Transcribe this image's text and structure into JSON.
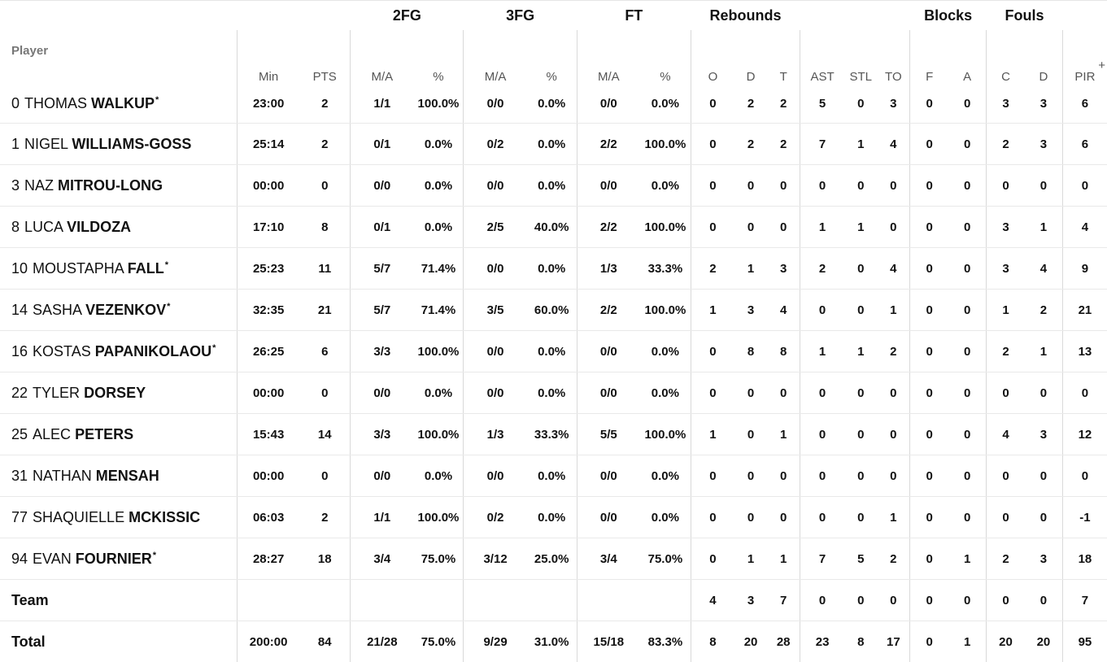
{
  "groups": {
    "fg2": "2FG",
    "fg3": "3FG",
    "ft": "FT",
    "rebounds": "Rebounds",
    "blocks": "Blocks",
    "fouls": "Fouls"
  },
  "columns": {
    "player": "Player",
    "min": "Min",
    "pts": "PTS",
    "fg2_ma": "M/A",
    "fg2_pct": "%",
    "fg3_ma": "M/A",
    "fg3_pct": "%",
    "ft_ma": "M/A",
    "ft_pct": "%",
    "reb_o": "O",
    "reb_d": "D",
    "reb_t": "T",
    "ast": "AST",
    "stl": "STL",
    "to": "TO",
    "blk_f": "F",
    "blk_a": "A",
    "foul_c": "C",
    "foul_d": "D",
    "pir": "PIR",
    "more": "+"
  },
  "rows": [
    {
      "num": "0",
      "first": "THOMAS",
      "last": "WALKUP",
      "star": "*",
      "min": "23:00",
      "pts": "2",
      "fg2_ma": "1/1",
      "fg2_pct": "100.0%",
      "fg3_ma": "0/0",
      "fg3_pct": "0.0%",
      "ft_ma": "0/0",
      "ft_pct": "0.0%",
      "reb_o": "0",
      "reb_d": "2",
      "reb_t": "2",
      "ast": "5",
      "stl": "0",
      "to": "3",
      "blk_f": "0",
      "blk_a": "0",
      "foul_c": "3",
      "foul_d": "3",
      "pir": "6"
    },
    {
      "num": "1",
      "first": "NIGEL",
      "last": "WILLIAMS-GOSS",
      "star": "",
      "min": "25:14",
      "pts": "2",
      "fg2_ma": "0/1",
      "fg2_pct": "0.0%",
      "fg3_ma": "0/2",
      "fg3_pct": "0.0%",
      "ft_ma": "2/2",
      "ft_pct": "100.0%",
      "reb_o": "0",
      "reb_d": "2",
      "reb_t": "2",
      "ast": "7",
      "stl": "1",
      "to": "4",
      "blk_f": "0",
      "blk_a": "0",
      "foul_c": "2",
      "foul_d": "3",
      "pir": "6"
    },
    {
      "num": "3",
      "first": "NAZ",
      "last": "MITROU-LONG",
      "star": "",
      "min": "00:00",
      "pts": "0",
      "fg2_ma": "0/0",
      "fg2_pct": "0.0%",
      "fg3_ma": "0/0",
      "fg3_pct": "0.0%",
      "ft_ma": "0/0",
      "ft_pct": "0.0%",
      "reb_o": "0",
      "reb_d": "0",
      "reb_t": "0",
      "ast": "0",
      "stl": "0",
      "to": "0",
      "blk_f": "0",
      "blk_a": "0",
      "foul_c": "0",
      "foul_d": "0",
      "pir": "0"
    },
    {
      "num": "8",
      "first": "LUCA",
      "last": "VILDOZA",
      "star": "",
      "min": "17:10",
      "pts": "8",
      "fg2_ma": "0/1",
      "fg2_pct": "0.0%",
      "fg3_ma": "2/5",
      "fg3_pct": "40.0%",
      "ft_ma": "2/2",
      "ft_pct": "100.0%",
      "reb_o": "0",
      "reb_d": "0",
      "reb_t": "0",
      "ast": "1",
      "stl": "1",
      "to": "0",
      "blk_f": "0",
      "blk_a": "0",
      "foul_c": "3",
      "foul_d": "1",
      "pir": "4"
    },
    {
      "num": "10",
      "first": "MOUSTAPHA",
      "last": "FALL",
      "star": "*",
      "min": "25:23",
      "pts": "11",
      "fg2_ma": "5/7",
      "fg2_pct": "71.4%",
      "fg3_ma": "0/0",
      "fg3_pct": "0.0%",
      "ft_ma": "1/3",
      "ft_pct": "33.3%",
      "reb_o": "2",
      "reb_d": "1",
      "reb_t": "3",
      "ast": "2",
      "stl": "0",
      "to": "4",
      "blk_f": "0",
      "blk_a": "0",
      "foul_c": "3",
      "foul_d": "4",
      "pir": "9"
    },
    {
      "num": "14",
      "first": "SASHA",
      "last": "VEZENKOV",
      "star": "*",
      "min": "32:35",
      "pts": "21",
      "fg2_ma": "5/7",
      "fg2_pct": "71.4%",
      "fg3_ma": "3/5",
      "fg3_pct": "60.0%",
      "ft_ma": "2/2",
      "ft_pct": "100.0%",
      "reb_o": "1",
      "reb_d": "3",
      "reb_t": "4",
      "ast": "0",
      "stl": "0",
      "to": "1",
      "blk_f": "0",
      "blk_a": "0",
      "foul_c": "1",
      "foul_d": "2",
      "pir": "21"
    },
    {
      "num": "16",
      "first": "KOSTAS",
      "last": "PAPANIKOLAOU",
      "star": "*",
      "min": "26:25",
      "pts": "6",
      "fg2_ma": "3/3",
      "fg2_pct": "100.0%",
      "fg3_ma": "0/0",
      "fg3_pct": "0.0%",
      "ft_ma": "0/0",
      "ft_pct": "0.0%",
      "reb_o": "0",
      "reb_d": "8",
      "reb_t": "8",
      "ast": "1",
      "stl": "1",
      "to": "2",
      "blk_f": "0",
      "blk_a": "0",
      "foul_c": "2",
      "foul_d": "1",
      "pir": "13"
    },
    {
      "num": "22",
      "first": "TYLER",
      "last": "DORSEY",
      "star": "",
      "min": "00:00",
      "pts": "0",
      "fg2_ma": "0/0",
      "fg2_pct": "0.0%",
      "fg3_ma": "0/0",
      "fg3_pct": "0.0%",
      "ft_ma": "0/0",
      "ft_pct": "0.0%",
      "reb_o": "0",
      "reb_d": "0",
      "reb_t": "0",
      "ast": "0",
      "stl": "0",
      "to": "0",
      "blk_f": "0",
      "blk_a": "0",
      "foul_c": "0",
      "foul_d": "0",
      "pir": "0"
    },
    {
      "num": "25",
      "first": "ALEC",
      "last": "PETERS",
      "star": "",
      "min": "15:43",
      "pts": "14",
      "fg2_ma": "3/3",
      "fg2_pct": "100.0%",
      "fg3_ma": "1/3",
      "fg3_pct": "33.3%",
      "ft_ma": "5/5",
      "ft_pct": "100.0%",
      "reb_o": "1",
      "reb_d": "0",
      "reb_t": "1",
      "ast": "0",
      "stl": "0",
      "to": "0",
      "blk_f": "0",
      "blk_a": "0",
      "foul_c": "4",
      "foul_d": "3",
      "pir": "12"
    },
    {
      "num": "31",
      "first": "NATHAN",
      "last": "MENSAH",
      "star": "",
      "min": "00:00",
      "pts": "0",
      "fg2_ma": "0/0",
      "fg2_pct": "0.0%",
      "fg3_ma": "0/0",
      "fg3_pct": "0.0%",
      "ft_ma": "0/0",
      "ft_pct": "0.0%",
      "reb_o": "0",
      "reb_d": "0",
      "reb_t": "0",
      "ast": "0",
      "stl": "0",
      "to": "0",
      "blk_f": "0",
      "blk_a": "0",
      "foul_c": "0",
      "foul_d": "0",
      "pir": "0"
    },
    {
      "num": "77",
      "first": "SHAQUIELLE",
      "last": "MCKISSIC",
      "star": "",
      "min": "06:03",
      "pts": "2",
      "fg2_ma": "1/1",
      "fg2_pct": "100.0%",
      "fg3_ma": "0/2",
      "fg3_pct": "0.0%",
      "ft_ma": "0/0",
      "ft_pct": "0.0%",
      "reb_o": "0",
      "reb_d": "0",
      "reb_t": "0",
      "ast": "0",
      "stl": "0",
      "to": "1",
      "blk_f": "0",
      "blk_a": "0",
      "foul_c": "0",
      "foul_d": "0",
      "pir": "-1"
    },
    {
      "num": "94",
      "first": "EVAN",
      "last": "FOURNIER",
      "star": "*",
      "min": "28:27",
      "pts": "18",
      "fg2_ma": "3/4",
      "fg2_pct": "75.0%",
      "fg3_ma": "3/12",
      "fg3_pct": "25.0%",
      "ft_ma": "3/4",
      "ft_pct": "75.0%",
      "reb_o": "0",
      "reb_d": "1",
      "reb_t": "1",
      "ast": "7",
      "stl": "5",
      "to": "2",
      "blk_f": "0",
      "blk_a": "1",
      "foul_c": "2",
      "foul_d": "3",
      "pir": "18"
    }
  ],
  "team": {
    "label": "Team",
    "min": "",
    "pts": "",
    "fg2_ma": "",
    "fg2_pct": "",
    "fg3_ma": "",
    "fg3_pct": "",
    "ft_ma": "",
    "ft_pct": "",
    "reb_o": "4",
    "reb_d": "3",
    "reb_t": "7",
    "ast": "0",
    "stl": "0",
    "to": "0",
    "blk_f": "0",
    "blk_a": "0",
    "foul_c": "0",
    "foul_d": "0",
    "pir": "7"
  },
  "total": {
    "label": "Total",
    "min": "200:00",
    "pts": "84",
    "fg2_ma": "21/28",
    "fg2_pct": "75.0%",
    "fg3_ma": "9/29",
    "fg3_pct": "31.0%",
    "ft_ma": "15/18",
    "ft_pct": "83.3%",
    "reb_o": "8",
    "reb_d": "20",
    "reb_t": "28",
    "ast": "23",
    "stl": "8",
    "to": "17",
    "blk_f": "0",
    "blk_a": "1",
    "foul_c": "20",
    "foul_d": "20",
    "pir": "95"
  }
}
